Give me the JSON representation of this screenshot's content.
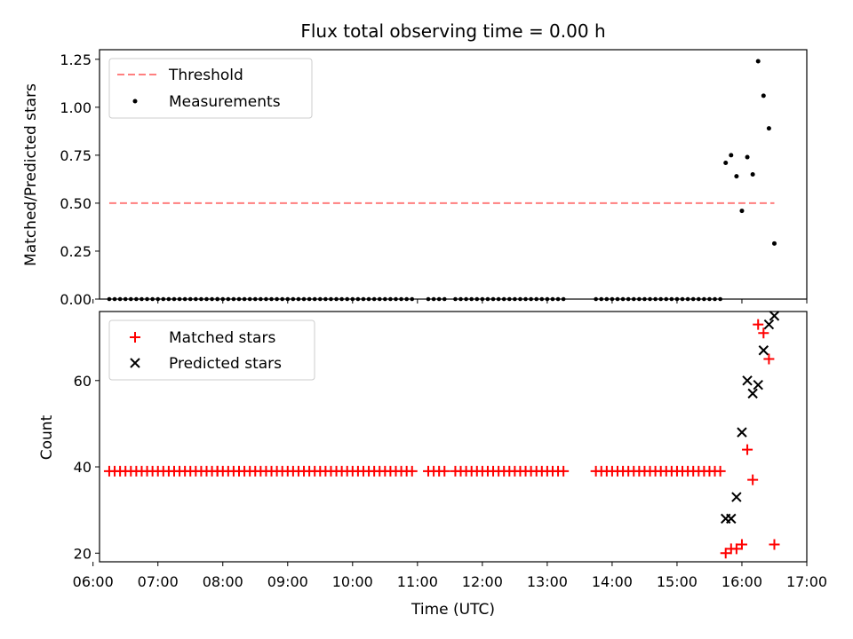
{
  "chart_data": [
    {
      "type": "scatter",
      "title": "Flux total observing time = 0.00 h",
      "ylabel": "Matched/Predicted stars",
      "xlabel": "",
      "xlim": [
        "06:06",
        "17:00"
      ],
      "ylim": [
        0,
        1.3
      ],
      "yticks": [
        "0.00",
        "0.25",
        "0.50",
        "0.75",
        "1.00",
        "1.25"
      ],
      "legend_placement": "upper-left",
      "series": [
        {
          "name": "Threshold",
          "style": "dashed-line",
          "color": "#ff7f7f",
          "x": [
            "06:15",
            "16:30"
          ],
          "y": [
            0.5,
            0.5
          ]
        },
        {
          "name": "Measurements",
          "style": "dot",
          "color": "#000000",
          "x": [
            "15:45",
            "15:50",
            "15:55",
            "16:00",
            "16:05",
            "16:10",
            "16:15",
            "16:20",
            "16:25",
            "16:30"
          ],
          "y": [
            0.71,
            0.75,
            0.64,
            0.46,
            0.74,
            0.65,
            1.24,
            1.06,
            0.89,
            0.29
          ],
          "zero_segments": [
            [
              "06:15",
              "07:55"
            ],
            [
              "07:55",
              "10:55"
            ],
            [
              "11:10",
              "11:25"
            ],
            [
              "11:35",
              "13:15"
            ],
            [
              "13:45",
              "15:40"
            ]
          ]
        }
      ]
    },
    {
      "type": "scatter",
      "title": "",
      "ylabel": "Count",
      "xlabel": "Time (UTC)",
      "xlim": [
        "06:06",
        "17:00"
      ],
      "ylim": [
        18,
        76
      ],
      "xticks": [
        "06:00",
        "07:00",
        "08:00",
        "09:00",
        "10:00",
        "11:00",
        "12:00",
        "13:00",
        "14:00",
        "15:00",
        "16:00",
        "17:00"
      ],
      "yticks": [
        "20",
        "40",
        "60"
      ],
      "legend_placement": "upper-left",
      "series": [
        {
          "name": "Matched stars",
          "marker": "+",
          "color": "#ff0000",
          "x": [
            "15:45",
            "15:50",
            "15:55",
            "16:00",
            "16:05",
            "16:10",
            "16:15",
            "16:20",
            "16:25",
            "16:30"
          ],
          "y": [
            20,
            21,
            21,
            22,
            44,
            37,
            73,
            71,
            65,
            22
          ],
          "constant_segments": [
            {
              "y": 39,
              "ranges": [
                [
                  "06:15",
                  "07:55"
                ],
                [
                  "07:55",
                  "10:55"
                ],
                [
                  "11:10",
                  "11:25"
                ],
                [
                  "11:35",
                  "13:15"
                ],
                [
                  "13:45",
                  "15:40"
                ]
              ]
            }
          ]
        },
        {
          "name": "Predicted stars",
          "marker": "x",
          "color": "#000000",
          "x": [
            "15:45",
            "15:50",
            "15:55",
            "16:00",
            "16:05",
            "16:10",
            "16:15",
            "16:20",
            "16:25",
            "16:30"
          ],
          "y": [
            28,
            28,
            33,
            48,
            60,
            57,
            59,
            67,
            73,
            75
          ]
        }
      ]
    }
  ]
}
